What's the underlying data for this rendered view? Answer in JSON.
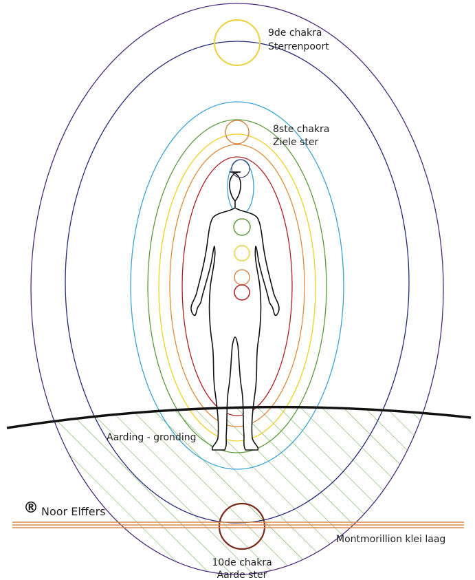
{
  "labels": {
    "chakra_9": [
      "9de  chakra",
      "Sterrenpoort"
    ],
    "chakra_8": [
      "8ste  chakra",
      "Ziele ster"
    ],
    "grounding": "Aarding - gronding",
    "registered": "®",
    "author": "Noor Elffers",
    "clay_layer": "Montmorillion klei laag",
    "chakra_10": [
      "10de  chakra",
      "Aarde ster"
    ]
  }
}
